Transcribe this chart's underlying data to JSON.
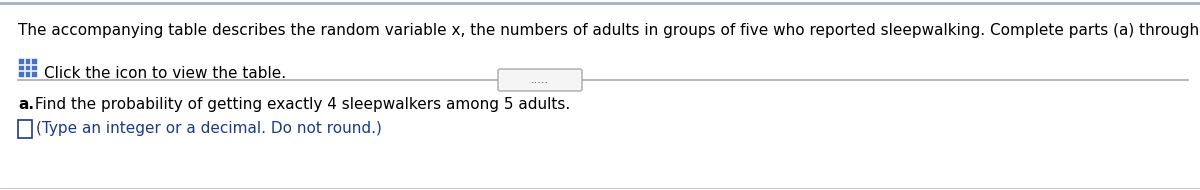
{
  "line1": "The accompanying table describes the random variable x, the numbers of adults in groups of five who reported sleepwalking. Complete parts (a) through (d) below.",
  "icon_text": "Click the icon to view the table.",
  "divider_dots": ".....",
  "part_a_bold": "a.",
  "part_a_text": " Find the probability of getting exactly 4 sleepwalkers among 5 adults.",
  "answer_hint": "(Type an integer or a decimal. Do not round.)",
  "background_color": "#ffffff",
  "text_color": "#000000",
  "blue_color": "#1a3a8a",
  "hint_color": "#1a3a8a",
  "icon_color": "#4472c4",
  "border_color": "#b0b0b0",
  "divider_color": "#aaaaaa",
  "font_size_main": 11.0,
  "font_size_hint": 11.0
}
